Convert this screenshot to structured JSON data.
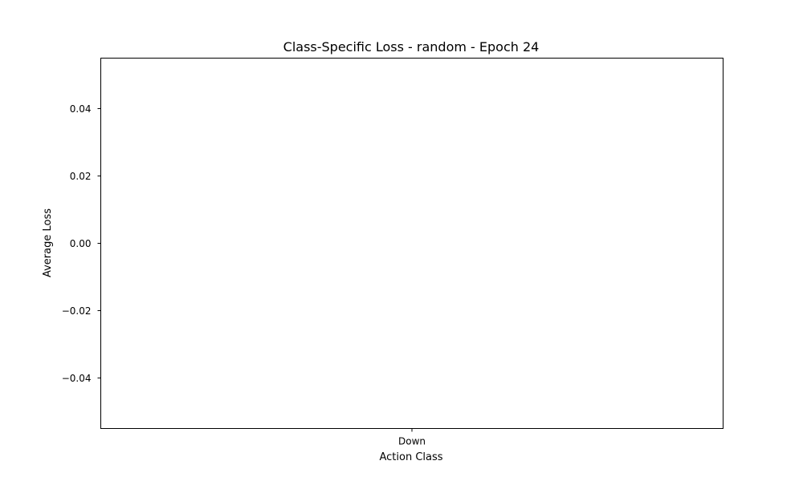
{
  "chart_data": {
    "type": "bar",
    "title": "Class-Specific Loss - random - Epoch 24",
    "xlabel": "Action Class",
    "ylabel": "Average Loss",
    "categories": [
      "Down"
    ],
    "values": [
      0
    ],
    "ylim": [
      -0.055,
      0.055
    ],
    "yticks": [
      0.04,
      0.02,
      0.0,
      -0.02,
      -0.04
    ],
    "ytick_labels": [
      "0.04",
      "0.02",
      "0.00",
      "−0.02",
      "−0.04"
    ],
    "grid": false,
    "legend": "none"
  }
}
